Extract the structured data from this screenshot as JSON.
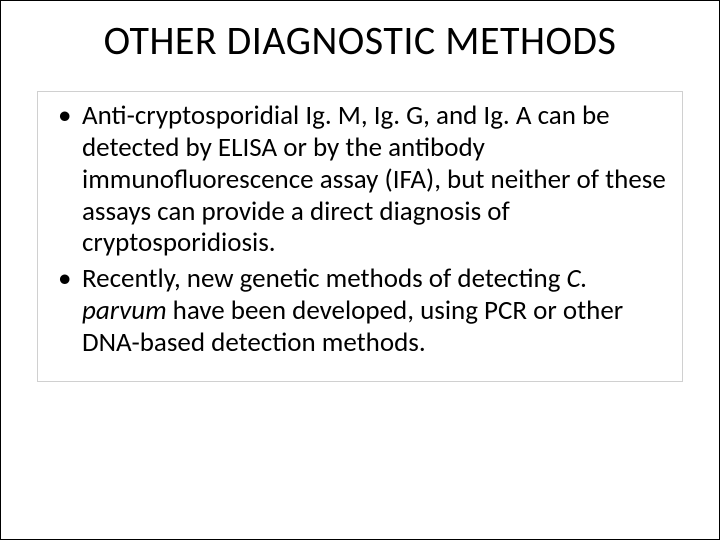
{
  "slide": {
    "title": "OTHER DIAGNOSTIC METHODS",
    "bullets": [
      {
        "runs": [
          {
            "t": "Anti-cryptosporidial Ig. M, Ig. G, and Ig. A can be detected by ELISA or by the antibody immunofluorescence assay (IFA), but neither of these assays can provide a direct diagnosis of cryptosporidiosis.",
            "i": false
          }
        ]
      },
      {
        "runs": [
          {
            "t": "Recently, new genetic methods of detecting ",
            "i": false
          },
          {
            "t": "C. parvum",
            "i": true
          },
          {
            "t": " have been developed, using PCR or other DNA-based detection methods.",
            "i": false
          }
        ]
      }
    ]
  },
  "style": {
    "background_color": "#ffffff",
    "text_color": "#000000",
    "title_fontsize": 40,
    "body_fontsize": 27,
    "font_family": "Calibri"
  }
}
